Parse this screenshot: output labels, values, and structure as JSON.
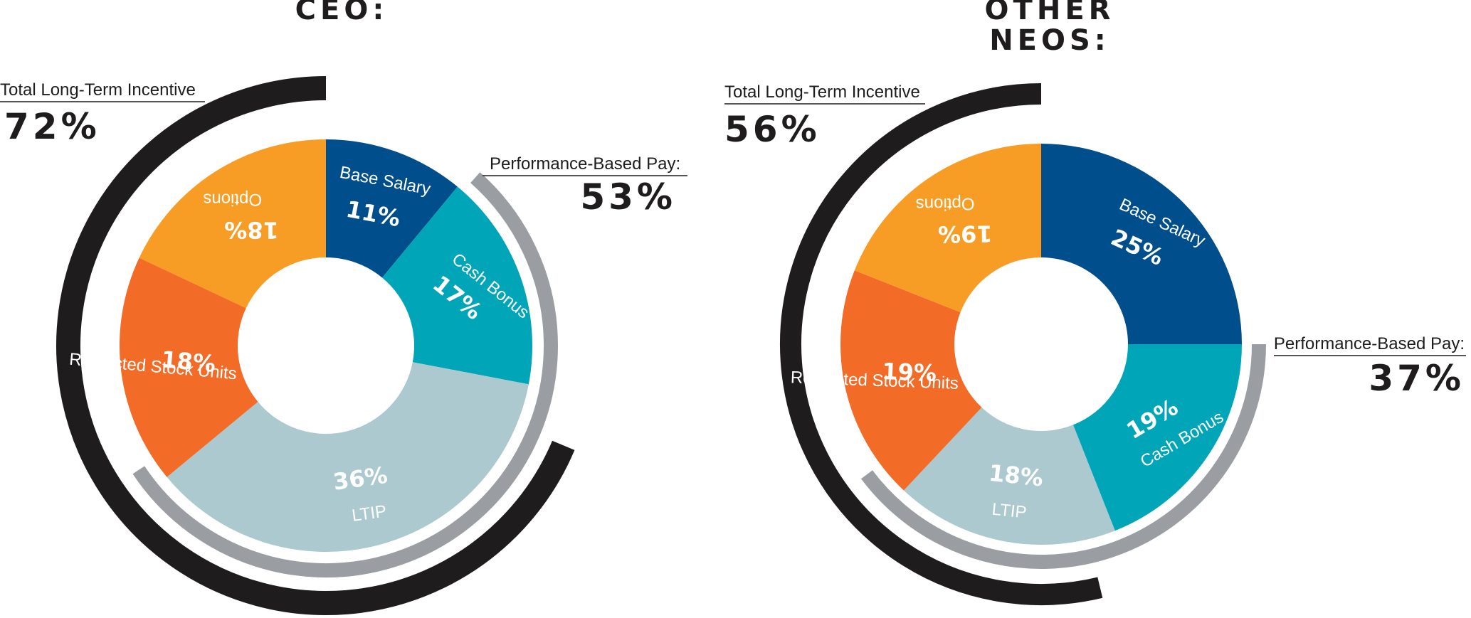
{
  "chart_data": [
    {
      "type": "pie",
      "title": "CEO:",
      "slices": [
        {
          "label": "Base Salary",
          "value": 11,
          "value_label": "11%",
          "color": "#004f8c"
        },
        {
          "label": "Cash Bonus",
          "value": 17,
          "value_label": "17%",
          "color": "#00a6b8"
        },
        {
          "label": "LTIP",
          "value": 36,
          "value_label": "36%",
          "color": "#acc9cf"
        },
        {
          "label": "Restricted Stock Units",
          "value": 18,
          "value_label": "18%",
          "color": "#f26b27"
        },
        {
          "label": "Options",
          "value": 18,
          "value_label": "18%",
          "color": "#f79d26"
        }
      ],
      "annotations": {
        "total_lti": {
          "label": "Total Long-Term Incentive",
          "value": "72%",
          "color": "#1e1c1d"
        },
        "performance_based": {
          "label": "Performance-Based Pay:",
          "value": "53%",
          "color": "#9a9ea2"
        }
      }
    },
    {
      "type": "pie",
      "title": "OTHER NEOS:",
      "title_lines": [
        "OTHER",
        "NEOS:"
      ],
      "slices": [
        {
          "label": "Base Salary",
          "value": 25,
          "value_label": "25%",
          "color": "#004f8c"
        },
        {
          "label": "Cash Bonus",
          "value": 19,
          "value_label": "19%",
          "color": "#00a6b8"
        },
        {
          "label": "LTIP",
          "value": 18,
          "value_label": "18%",
          "color": "#acc9cf"
        },
        {
          "label": "Restricted Stock Units",
          "value": 19,
          "value_label": "19%",
          "color": "#f26b27"
        },
        {
          "label": "Options",
          "value": 19,
          "value_label": "19%",
          "color": "#f79d26"
        }
      ],
      "annotations": {
        "total_lti": {
          "label": "Total Long-Term Incentive",
          "value": "56%",
          "color": "#1e1c1d"
        },
        "performance_based": {
          "label": "Performance-Based Pay:",
          "value": "37%",
          "color": "#9a9ea2"
        }
      }
    }
  ]
}
